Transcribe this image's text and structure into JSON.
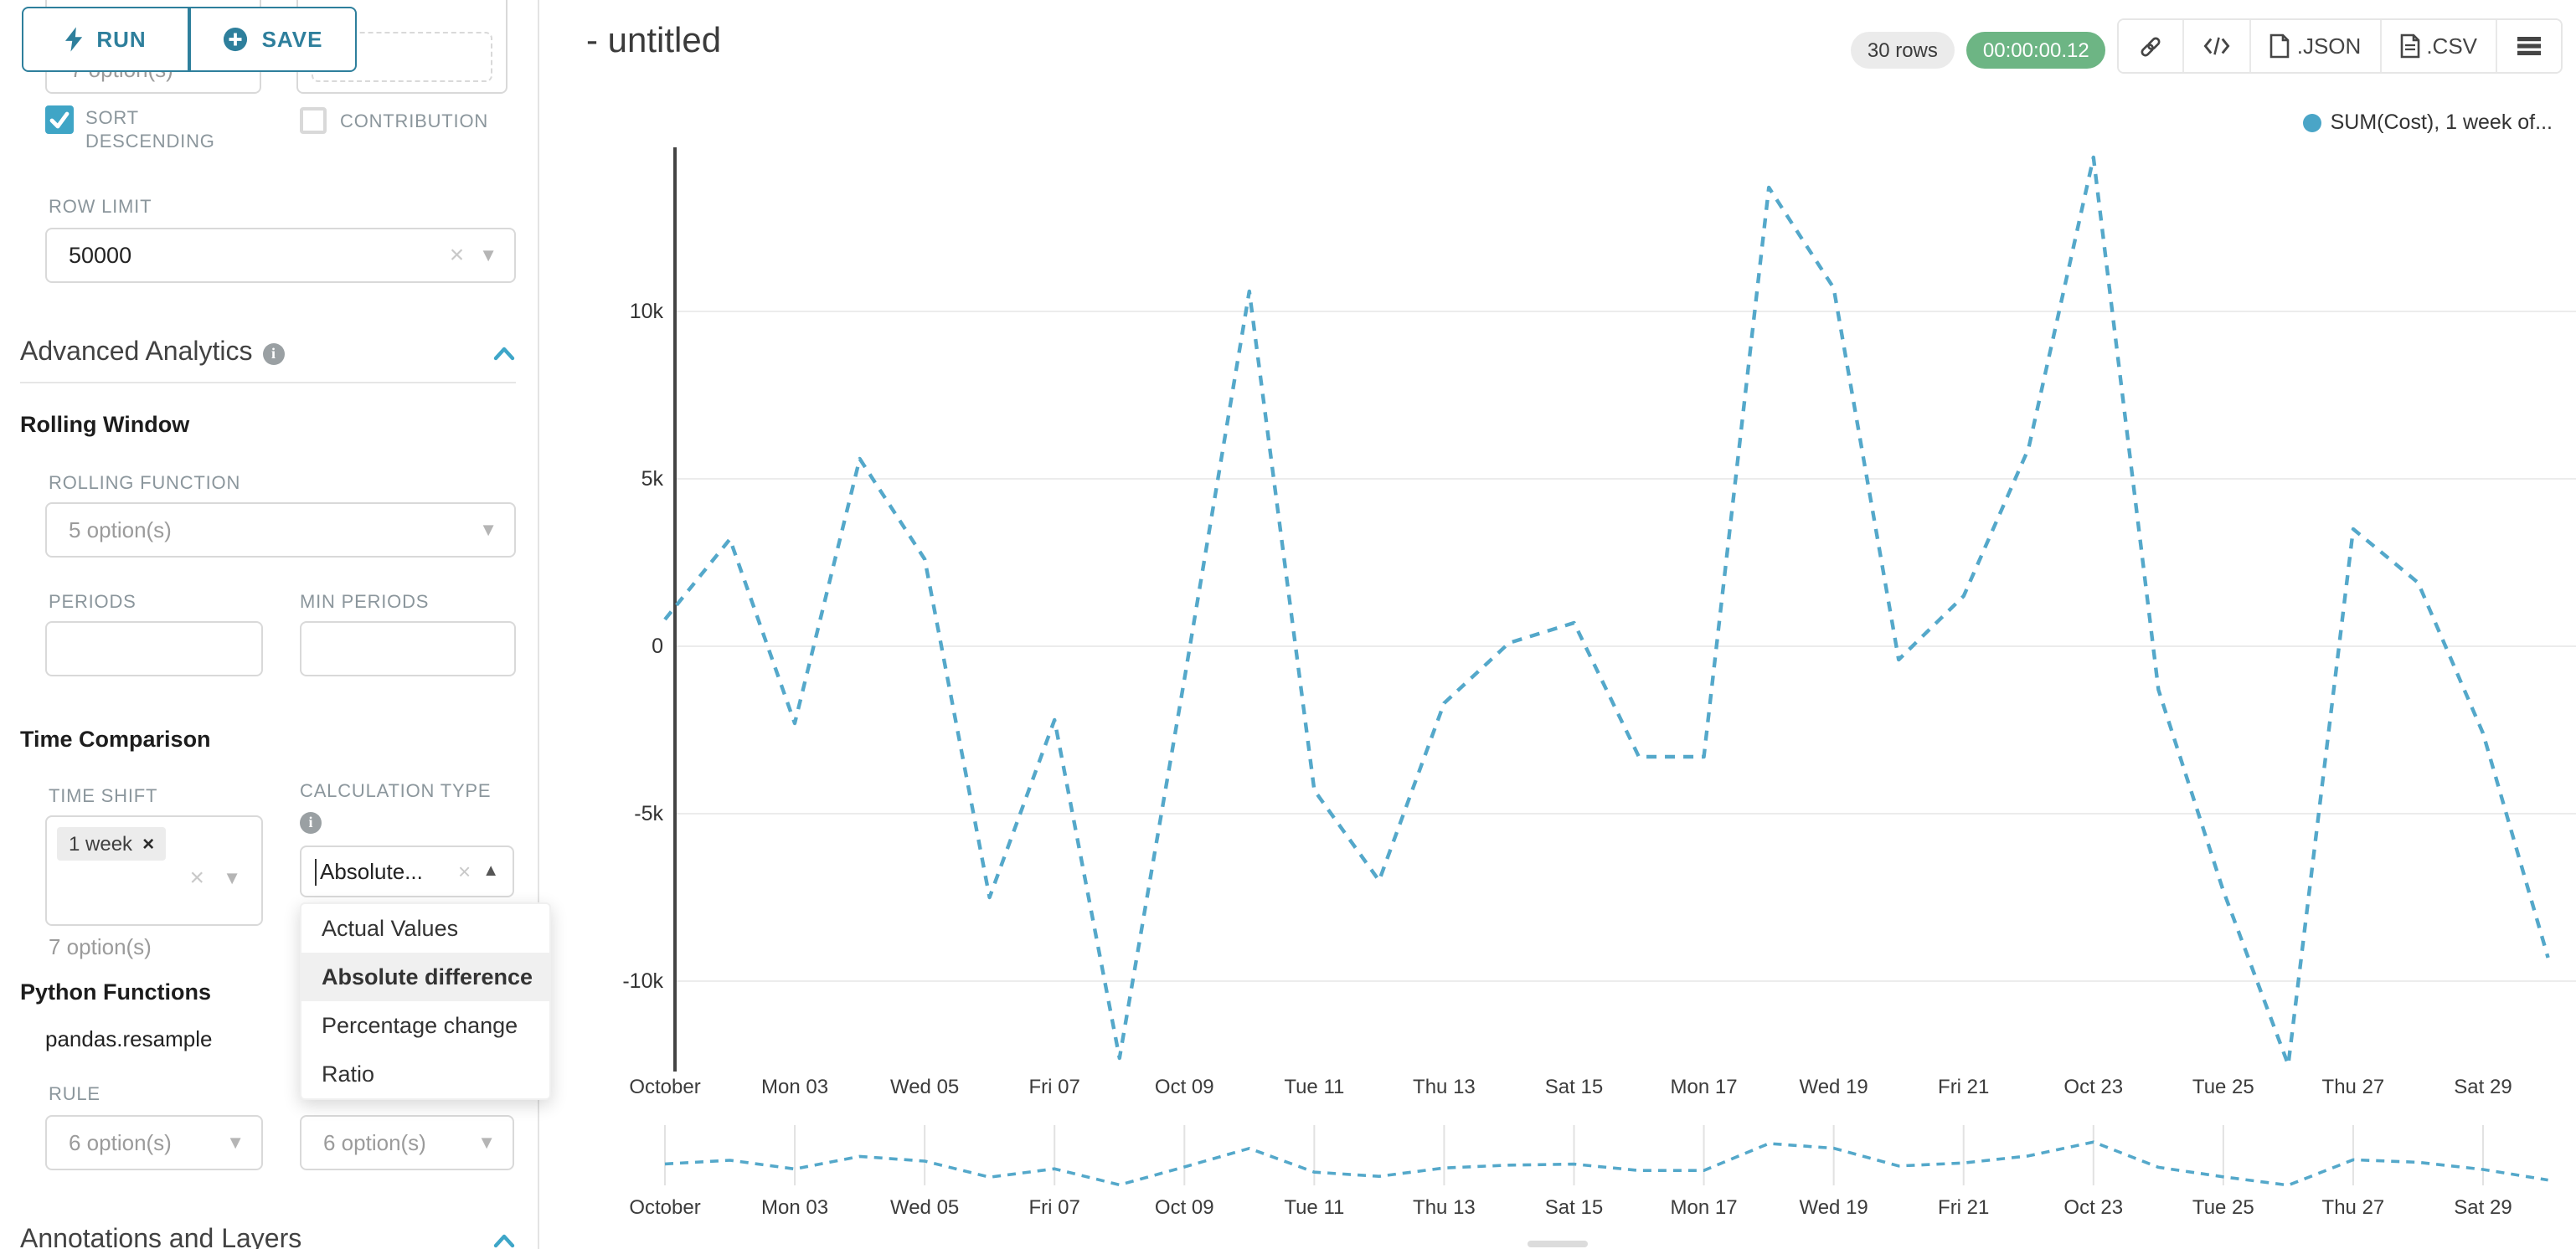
{
  "toolbar": {
    "run_label": "RUN",
    "save_label": "SAVE"
  },
  "sidebar": {
    "hidden_left_option_text": "7 option(s)",
    "sort_descending_label": "SORT DESCENDING",
    "contribution_label": "CONTRIBUTION",
    "row_limit_label": "ROW LIMIT",
    "row_limit_value": "50000",
    "advanced_analytics_title": "Advanced Analytics",
    "rolling_window_title": "Rolling Window",
    "rolling_function_label": "ROLLING FUNCTION",
    "rolling_function_value": "5 option(s)",
    "periods_label": "PERIODS",
    "min_periods_label": "MIN PERIODS",
    "time_comparison_title": "Time Comparison",
    "time_shift_label": "TIME SHIFT",
    "time_shift_tag": "1 week",
    "time_shift_helper": "7 option(s)",
    "calculation_type_label": "CALCULATION TYPE",
    "calculation_type_value": "Absolute...",
    "dropdown": {
      "items": [
        "Actual Values",
        "Absolute difference",
        "Percentage change",
        "Ratio"
      ],
      "selected": "Absolute difference"
    },
    "python_functions_title": "Python Functions",
    "pandas_resample_label": "pandas.resample",
    "rule_label": "RULE",
    "rule_value_1": "6 option(s)",
    "rule_value_2": "6 option(s)",
    "annotations_title": "Annotations and Layers"
  },
  "header": {
    "title": "- untitled",
    "rows_badge": "30 rows",
    "timer": "00:00:00.12",
    "json_label": ".JSON",
    "csv_label": ".CSV"
  },
  "legend": {
    "label": "SUM(Cost), 1 week of...",
    "color": "#4aa5c7"
  },
  "colors": {
    "accent_teal": "#2e7f9c",
    "line_blue": "#54a8ca",
    "checkbox_teal": "#3fa5c6",
    "timer_green": "#6db584",
    "chevron_blue": "#3ea6c8"
  },
  "chart_data": {
    "type": "line",
    "title": "",
    "series": [
      {
        "name": "SUM(Cost), 1 week offset",
        "x": [
          "Oct 01",
          "Oct 02",
          "Oct 03",
          "Oct 04",
          "Oct 05",
          "Oct 06",
          "Oct 07",
          "Oct 08",
          "Oct 09",
          "Oct 10",
          "Oct 11",
          "Oct 12",
          "Oct 13",
          "Oct 14",
          "Oct 15",
          "Oct 16",
          "Oct 17",
          "Oct 18",
          "Oct 19",
          "Oct 20",
          "Oct 21",
          "Oct 22",
          "Oct 23",
          "Oct 24",
          "Oct 25",
          "Oct 26",
          "Oct 27",
          "Oct 28",
          "Oct 29",
          "Oct 30"
        ],
        "values": [
          800,
          3200,
          -2300,
          5600,
          2600,
          -7500,
          -2200,
          -12300,
          -1000,
          10600,
          -4300,
          -7000,
          -1700,
          100,
          700,
          -3300,
          -3300,
          13700,
          10700,
          -400,
          1500,
          5900,
          14600,
          -1300,
          -7300,
          -12500,
          3500,
          1900,
          -2600,
          -9300
        ]
      }
    ],
    "x_tick_labels": [
      "October",
      "Mon 03",
      "Wed 05",
      "Fri 07",
      "Oct 09",
      "Tue 11",
      "Thu 13",
      "Sat 15",
      "Mon 17",
      "Wed 19",
      "Fri 21",
      "Oct 23",
      "Tue 25",
      "Thu 27",
      "Sat 29"
    ],
    "y_tick_labels": [
      "10k",
      "5k",
      "0",
      "-5k",
      "-10k"
    ],
    "y_tick_values": [
      10000,
      5000,
      0,
      -5000,
      -10000
    ],
    "ylim": [
      -14000,
      15500
    ],
    "grid": true,
    "line_style": "dashed",
    "line_color": "#54a8ca",
    "legend_position": "top-right",
    "has_mini_preview_chart": true
  }
}
